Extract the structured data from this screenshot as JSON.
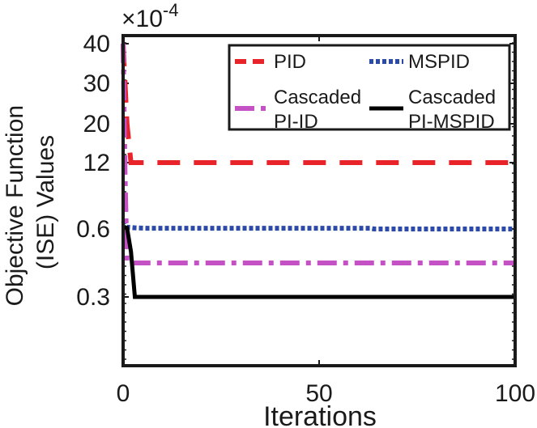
{
  "chart_data": {
    "type": "line",
    "title": "",
    "xlabel": "Iterations",
    "ylabel": "Objective Function (ISE) Values",
    "exponent_label": "×10",
    "exponent_power": "-4",
    "xlim": [
      0,
      100
    ],
    "xticks": [
      0,
      50,
      100
    ],
    "yticks": [
      "40",
      "30",
      "20",
      "12",
      "0.6",
      "0.3"
    ],
    "ytick_values": [
      40,
      30,
      20,
      12,
      0.6,
      0.3
    ],
    "legend_placement": "top-right",
    "series": [
      {
        "name": "PID",
        "legend_lines": [
          "PID"
        ],
        "color": "#e8232a",
        "style": "dashed",
        "x": [
          0,
          1,
          2,
          100
        ],
        "y": [
          40,
          20,
          12,
          12
        ]
      },
      {
        "name": "MSPID",
        "legend_lines": [
          "MSPID"
        ],
        "color": "#2c4aa8",
        "style": "dotted",
        "x": [
          0,
          1,
          3,
          6,
          63,
          64,
          100
        ],
        "y": [
          2,
          0.9,
          0.8,
          0.72,
          0.72,
          0.6,
          0.6
        ]
      },
      {
        "name": "Cascaded PI-ID",
        "legend_lines": [
          "Cascaded",
          "PI-ID"
        ],
        "color": "#c452c4",
        "style": "dashdot",
        "x": [
          0,
          0.5,
          1,
          100
        ],
        "y": [
          40,
          10,
          0.45,
          0.45
        ]
      },
      {
        "name": "Cascaded PI-MSPID",
        "legend_lines": [
          "Cascaded",
          "PI-MSPID"
        ],
        "color": "#000000",
        "style": "solid",
        "x": [
          0,
          1,
          2,
          3,
          100
        ],
        "y": [
          1,
          0.8,
          0.5,
          0.3,
          0.3
        ]
      }
    ]
  }
}
